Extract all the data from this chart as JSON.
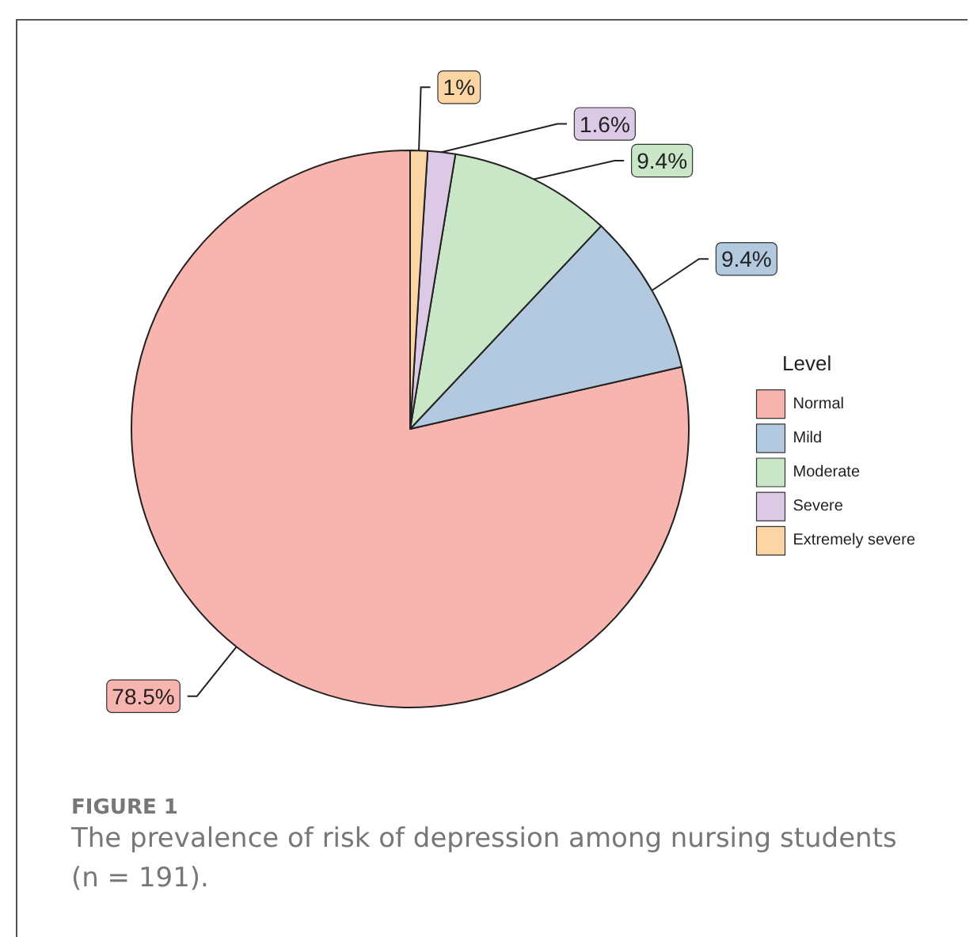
{
  "chart_data": {
    "type": "pie",
    "title": "FIGURE 1",
    "subtitle": "The prevalence of risk of depression among nursing students (n = 191).",
    "legend_title": "Level",
    "categories": [
      "Normal",
      "Mild",
      "Moderate",
      "Severe",
      "Extremely severe"
    ],
    "values": [
      78.5,
      9.4,
      9.4,
      1.6,
      1
    ],
    "colors": [
      "#f8b4ae",
      "#b3c9e0",
      "#c9e6c6",
      "#dcc9e6",
      "#fcd5a5"
    ],
    "value_labels": [
      "78.5%",
      "9.4%",
      "9.4%",
      "1.6%",
      "1%"
    ],
    "legend": "right"
  }
}
